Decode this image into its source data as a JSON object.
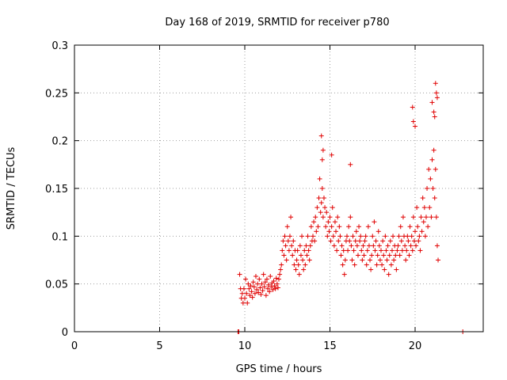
{
  "chart_data": {
    "type": "scatter",
    "title": "Day 168 of 2019, SRMTID for receiver p780",
    "xlabel": "GPS time / hours",
    "ylabel": "SRMTID / TECUs",
    "xlim": [
      0,
      24
    ],
    "ylim": [
      0,
      0.3
    ],
    "x_ticks": [
      0,
      5,
      10,
      15,
      20
    ],
    "x_tick_labels": [
      "0",
      "5",
      "10",
      "15",
      "20"
    ],
    "y_ticks": [
      0,
      0.05,
      0.1,
      0.15,
      0.2,
      0.25,
      0.3
    ],
    "y_tick_labels": [
      "0",
      "0.05",
      "0.1",
      "0.15",
      "0.2",
      "0.25",
      "0.3"
    ],
    "grid": true,
    "marker": "+",
    "color": "#e00000",
    "series": [
      {
        "name": "SRMTID",
        "x": [
          9.6,
          9.65,
          22.8,
          9.7,
          9.75,
          9.8,
          9.85,
          9.9,
          9.95,
          10.0,
          10.05,
          10.1,
          10.15,
          10.2,
          10.25,
          10.3,
          10.35,
          10.4,
          10.45,
          10.5,
          10.55,
          10.6,
          10.65,
          10.7,
          10.75,
          10.8,
          10.85,
          10.9,
          10.95,
          11.0,
          11.05,
          11.1,
          11.15,
          11.2,
          11.25,
          11.3,
          11.35,
          11.4,
          11.45,
          11.5,
          11.55,
          11.6,
          11.65,
          11.7,
          11.75,
          11.8,
          11.85,
          11.9,
          11.95,
          12.0,
          12.05,
          12.1,
          12.15,
          12.2,
          12.25,
          12.3,
          12.35,
          12.4,
          12.45,
          12.5,
          12.55,
          12.6,
          12.65,
          12.7,
          12.75,
          12.8,
          12.85,
          12.9,
          12.95,
          13.0,
          13.05,
          13.1,
          13.15,
          13.2,
          13.25,
          13.3,
          13.35,
          13.4,
          13.45,
          13.5,
          13.55,
          13.6,
          13.65,
          13.7,
          13.75,
          13.8,
          13.85,
          13.9,
          13.95,
          14.0,
          14.05,
          14.1,
          14.15,
          14.2,
          14.25,
          14.3,
          14.35,
          14.4,
          14.45,
          14.5,
          14.55,
          14.6,
          14.65,
          14.7,
          14.75,
          14.8,
          14.85,
          14.9,
          14.95,
          15.0,
          15.05,
          15.1,
          15.15,
          15.2,
          15.25,
          15.3,
          15.35,
          15.4,
          15.45,
          15.5,
          15.55,
          15.6,
          15.65,
          15.7,
          15.75,
          15.8,
          15.85,
          15.9,
          15.95,
          16.0,
          16.05,
          16.1,
          16.15,
          16.2,
          16.25,
          16.3,
          16.35,
          16.4,
          16.45,
          16.5,
          16.55,
          16.6,
          16.65,
          16.7,
          16.75,
          16.8,
          16.85,
          16.9,
          16.95,
          17.0,
          17.05,
          17.1,
          17.15,
          17.2,
          17.25,
          17.3,
          17.35,
          17.4,
          17.45,
          17.5,
          17.55,
          17.6,
          17.65,
          17.7,
          17.75,
          17.8,
          17.85,
          17.9,
          17.95,
          18.0,
          18.05,
          18.1,
          18.15,
          18.2,
          18.25,
          18.3,
          18.35,
          18.4,
          18.45,
          18.5,
          18.55,
          18.6,
          18.65,
          18.7,
          18.75,
          18.8,
          18.85,
          18.9,
          18.95,
          19.0,
          19.05,
          19.1,
          19.15,
          19.2,
          19.25,
          19.3,
          19.35,
          19.4,
          19.45,
          19.5,
          19.55,
          19.6,
          19.65,
          19.7,
          19.75,
          19.8,
          19.85,
          19.9,
          19.95,
          20.0,
          20.05,
          20.1,
          20.15,
          20.2,
          20.25,
          20.3,
          20.35,
          20.4,
          20.45,
          20.5,
          20.55,
          20.6,
          20.65,
          20.7,
          20.75,
          20.8,
          20.85,
          20.9,
          20.95,
          21.0,
          21.05,
          21.1,
          21.15,
          21.2,
          21.25,
          21.3,
          21.35,
          14.5,
          14.6,
          14.55,
          15.1,
          16.2,
          19.85,
          19.9,
          20.0,
          21.0,
          21.1,
          21.2,
          21.25,
          21.3,
          21.15
        ],
        "y": [
          0.0,
          0.0,
          0.0,
          0.06,
          0.045,
          0.035,
          0.04,
          0.03,
          0.045,
          0.035,
          0.055,
          0.04,
          0.03,
          0.05,
          0.045,
          0.038,
          0.048,
          0.042,
          0.036,
          0.052,
          0.047,
          0.04,
          0.058,
          0.044,
          0.05,
          0.041,
          0.055,
          0.046,
          0.039,
          0.05,
          0.043,
          0.06,
          0.047,
          0.052,
          0.038,
          0.055,
          0.045,
          0.049,
          0.042,
          0.058,
          0.047,
          0.051,
          0.044,
          0.053,
          0.048,
          0.045,
          0.056,
          0.05,
          0.046,
          0.055,
          0.06,
          0.065,
          0.07,
          0.085,
          0.095,
          0.08,
          0.1,
          0.09,
          0.075,
          0.11,
          0.095,
          0.085,
          0.1,
          0.12,
          0.09,
          0.08,
          0.095,
          0.07,
          0.085,
          0.065,
          0.075,
          0.085,
          0.07,
          0.06,
          0.09,
          0.08,
          0.1,
          0.075,
          0.065,
          0.085,
          0.07,
          0.09,
          0.08,
          0.1,
          0.085,
          0.075,
          0.09,
          0.11,
          0.095,
          0.1,
          0.115,
          0.095,
          0.12,
          0.105,
          0.13,
          0.11,
          0.14,
          0.16,
          0.125,
          0.135,
          0.15,
          0.12,
          0.14,
          0.13,
          0.11,
          0.125,
          0.1,
          0.115,
          0.105,
          0.12,
          0.095,
          0.11,
          0.13,
          0.1,
          0.09,
          0.115,
          0.105,
          0.085,
          0.12,
          0.095,
          0.11,
          0.1,
          0.08,
          0.09,
          0.07,
          0.085,
          0.06,
          0.075,
          0.095,
          0.1,
          0.085,
          0.11,
          0.095,
          0.12,
          0.09,
          0.075,
          0.1,
          0.085,
          0.07,
          0.095,
          0.105,
          0.09,
          0.08,
          0.11,
          0.095,
          0.1,
          0.085,
          0.075,
          0.09,
          0.08,
          0.095,
          0.1,
          0.07,
          0.085,
          0.11,
          0.09,
          0.075,
          0.065,
          0.08,
          0.1,
          0.09,
          0.115,
          0.085,
          0.095,
          0.07,
          0.08,
          0.105,
          0.09,
          0.075,
          0.085,
          0.07,
          0.095,
          0.08,
          0.065,
          0.1,
          0.085,
          0.075,
          0.09,
          0.06,
          0.08,
          0.095,
          0.07,
          0.085,
          0.1,
          0.075,
          0.09,
          0.08,
          0.065,
          0.085,
          0.09,
          0.1,
          0.08,
          0.11,
          0.095,
          0.085,
          0.12,
          0.1,
          0.09,
          0.075,
          0.085,
          0.1,
          0.095,
          0.08,
          0.11,
          0.09,
          0.1,
          0.085,
          0.12,
          0.095,
          0.105,
          0.09,
          0.13,
          0.11,
          0.095,
          0.1,
          0.085,
          0.12,
          0.105,
          0.14,
          0.115,
          0.13,
          0.1,
          0.12,
          0.15,
          0.11,
          0.17,
          0.13,
          0.16,
          0.12,
          0.18,
          0.15,
          0.19,
          0.14,
          0.17,
          0.12,
          0.09,
          0.075,
          0.205,
          0.19,
          0.18,
          0.185,
          0.175,
          0.235,
          0.22,
          0.215,
          0.24,
          0.23,
          0.26,
          0.25,
          0.245,
          0.225
        ]
      }
    ]
  }
}
